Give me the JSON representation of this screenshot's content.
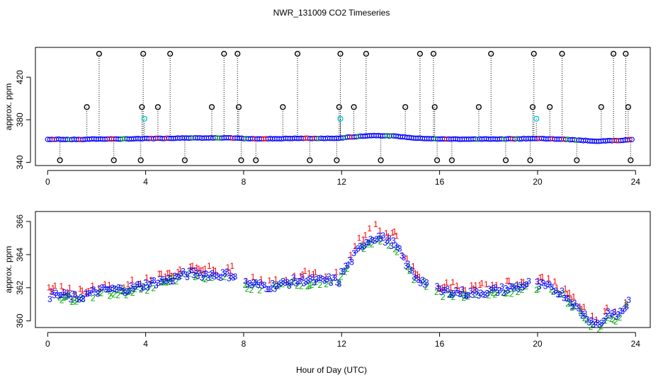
{
  "chart_data": [
    {
      "id": "top",
      "type": "scatter",
      "title": "NWR_131009  CO2 Timeseries",
      "ylabel": "approx. ppm",
      "xlim": [
        -0.5,
        24.6
      ],
      "ylim": [
        337,
        448
      ],
      "xticks": [
        0,
        4,
        8,
        12,
        16,
        20,
        24
      ],
      "yticks": [
        340,
        380,
        420
      ],
      "colors": {
        "black": "#000000",
        "blue": "#0000ff",
        "red": "#ff0000",
        "cyan": "#00cccc",
        "green": "#00aa00"
      },
      "outliers_black": [
        [
          0.5,
          342
        ],
        [
          1.6,
          392
        ],
        [
          2.1,
          442
        ],
        [
          2.7,
          342
        ],
        [
          3.8,
          342
        ],
        [
          3.85,
          392
        ],
        [
          3.9,
          442
        ],
        [
          4.5,
          392
        ],
        [
          5.0,
          442
        ],
        [
          5.6,
          342
        ],
        [
          6.7,
          392
        ],
        [
          7.2,
          442
        ],
        [
          7.75,
          442
        ],
        [
          7.8,
          392
        ],
        [
          7.9,
          342
        ],
        [
          8.5,
          342
        ],
        [
          9.6,
          392
        ],
        [
          10.2,
          442
        ],
        [
          10.7,
          342
        ],
        [
          11.8,
          342
        ],
        [
          11.9,
          392
        ],
        [
          11.95,
          442
        ],
        [
          12.5,
          392
        ],
        [
          13.0,
          442
        ],
        [
          13.6,
          342
        ],
        [
          14.6,
          392
        ],
        [
          15.2,
          442
        ],
        [
          15.75,
          442
        ],
        [
          15.8,
          392
        ],
        [
          15.9,
          342
        ],
        [
          16.5,
          342
        ],
        [
          17.6,
          392
        ],
        [
          18.1,
          442
        ],
        [
          18.7,
          342
        ],
        [
          19.7,
          342
        ],
        [
          19.8,
          392
        ],
        [
          19.85,
          442
        ],
        [
          20.5,
          392
        ],
        [
          21.0,
          442
        ],
        [
          21.6,
          342
        ],
        [
          22.6,
          392
        ],
        [
          23.1,
          442
        ],
        [
          23.6,
          442
        ],
        [
          23.7,
          392
        ],
        [
          23.8,
          342
        ]
      ],
      "outliers_cyan": [
        [
          3.95,
          381
        ],
        [
          11.95,
          381
        ],
        [
          19.95,
          381
        ]
      ]
    },
    {
      "id": "bottom",
      "type": "scatter",
      "ylabel": "approx. ppm",
      "xlabel": "Hour of Day (UTC)",
      "xlim": [
        -0.5,
        24.6
      ],
      "ylim": [
        359.6,
        366.6
      ],
      "xticks": [
        0,
        4,
        8,
        12,
        16,
        20,
        24
      ],
      "yticks": [
        360,
        362,
        364,
        366
      ],
      "series": [
        {
          "name": "1",
          "marker": "1",
          "color": "#ff0000"
        },
        {
          "name": "2",
          "marker": "2",
          "color": "#00aa00"
        },
        {
          "name": "3",
          "marker": "3",
          "color": "#0000ff"
        }
      ],
      "profile_x": [
        0.0,
        0.4,
        0.8,
        1.2,
        1.6,
        2.0,
        2.5,
        3.0,
        3.5,
        4.0,
        4.5,
        5.0,
        5.5,
        6.0,
        6.5,
        7.0,
        7.5,
        7.8,
        8.0,
        8.5,
        9.0,
        9.5,
        10.0,
        10.5,
        11.0,
        11.5,
        11.9,
        12.0,
        12.3,
        12.6,
        12.9,
        13.2,
        13.5,
        13.8,
        14.1,
        14.4,
        14.7,
        15.0,
        15.3,
        15.6,
        16.0,
        16.5,
        17.0,
        17.5,
        18.0,
        18.5,
        19.0,
        19.5,
        19.8,
        20.0,
        20.5,
        21.0,
        21.3,
        21.6,
        21.9,
        22.2,
        22.5,
        22.7,
        22.9,
        23.1,
        23.3,
        23.5,
        23.8
      ],
      "profile_y": [
        361.6,
        361.7,
        361.6,
        361.5,
        361.7,
        361.9,
        362.0,
        362.0,
        362.1,
        362.3,
        362.5,
        362.6,
        362.9,
        363.0,
        362.9,
        362.9,
        362.9,
        362.7,
        362.4,
        362.3,
        362.2,
        362.3,
        362.5,
        362.6,
        362.5,
        362.6,
        362.5,
        363.0,
        363.6,
        364.2,
        364.8,
        365.1,
        365.2,
        365.0,
        364.8,
        364.2,
        363.4,
        362.8,
        362.5,
        362.3,
        361.9,
        361.9,
        361.8,
        361.8,
        361.9,
        362.0,
        362.1,
        362.3,
        362.4,
        362.3,
        362.1,
        361.8,
        361.4,
        360.9,
        360.5,
        360.1,
        359.9,
        360.2,
        360.7,
        360.4,
        360.5,
        360.8,
        361.4
      ]
    }
  ]
}
